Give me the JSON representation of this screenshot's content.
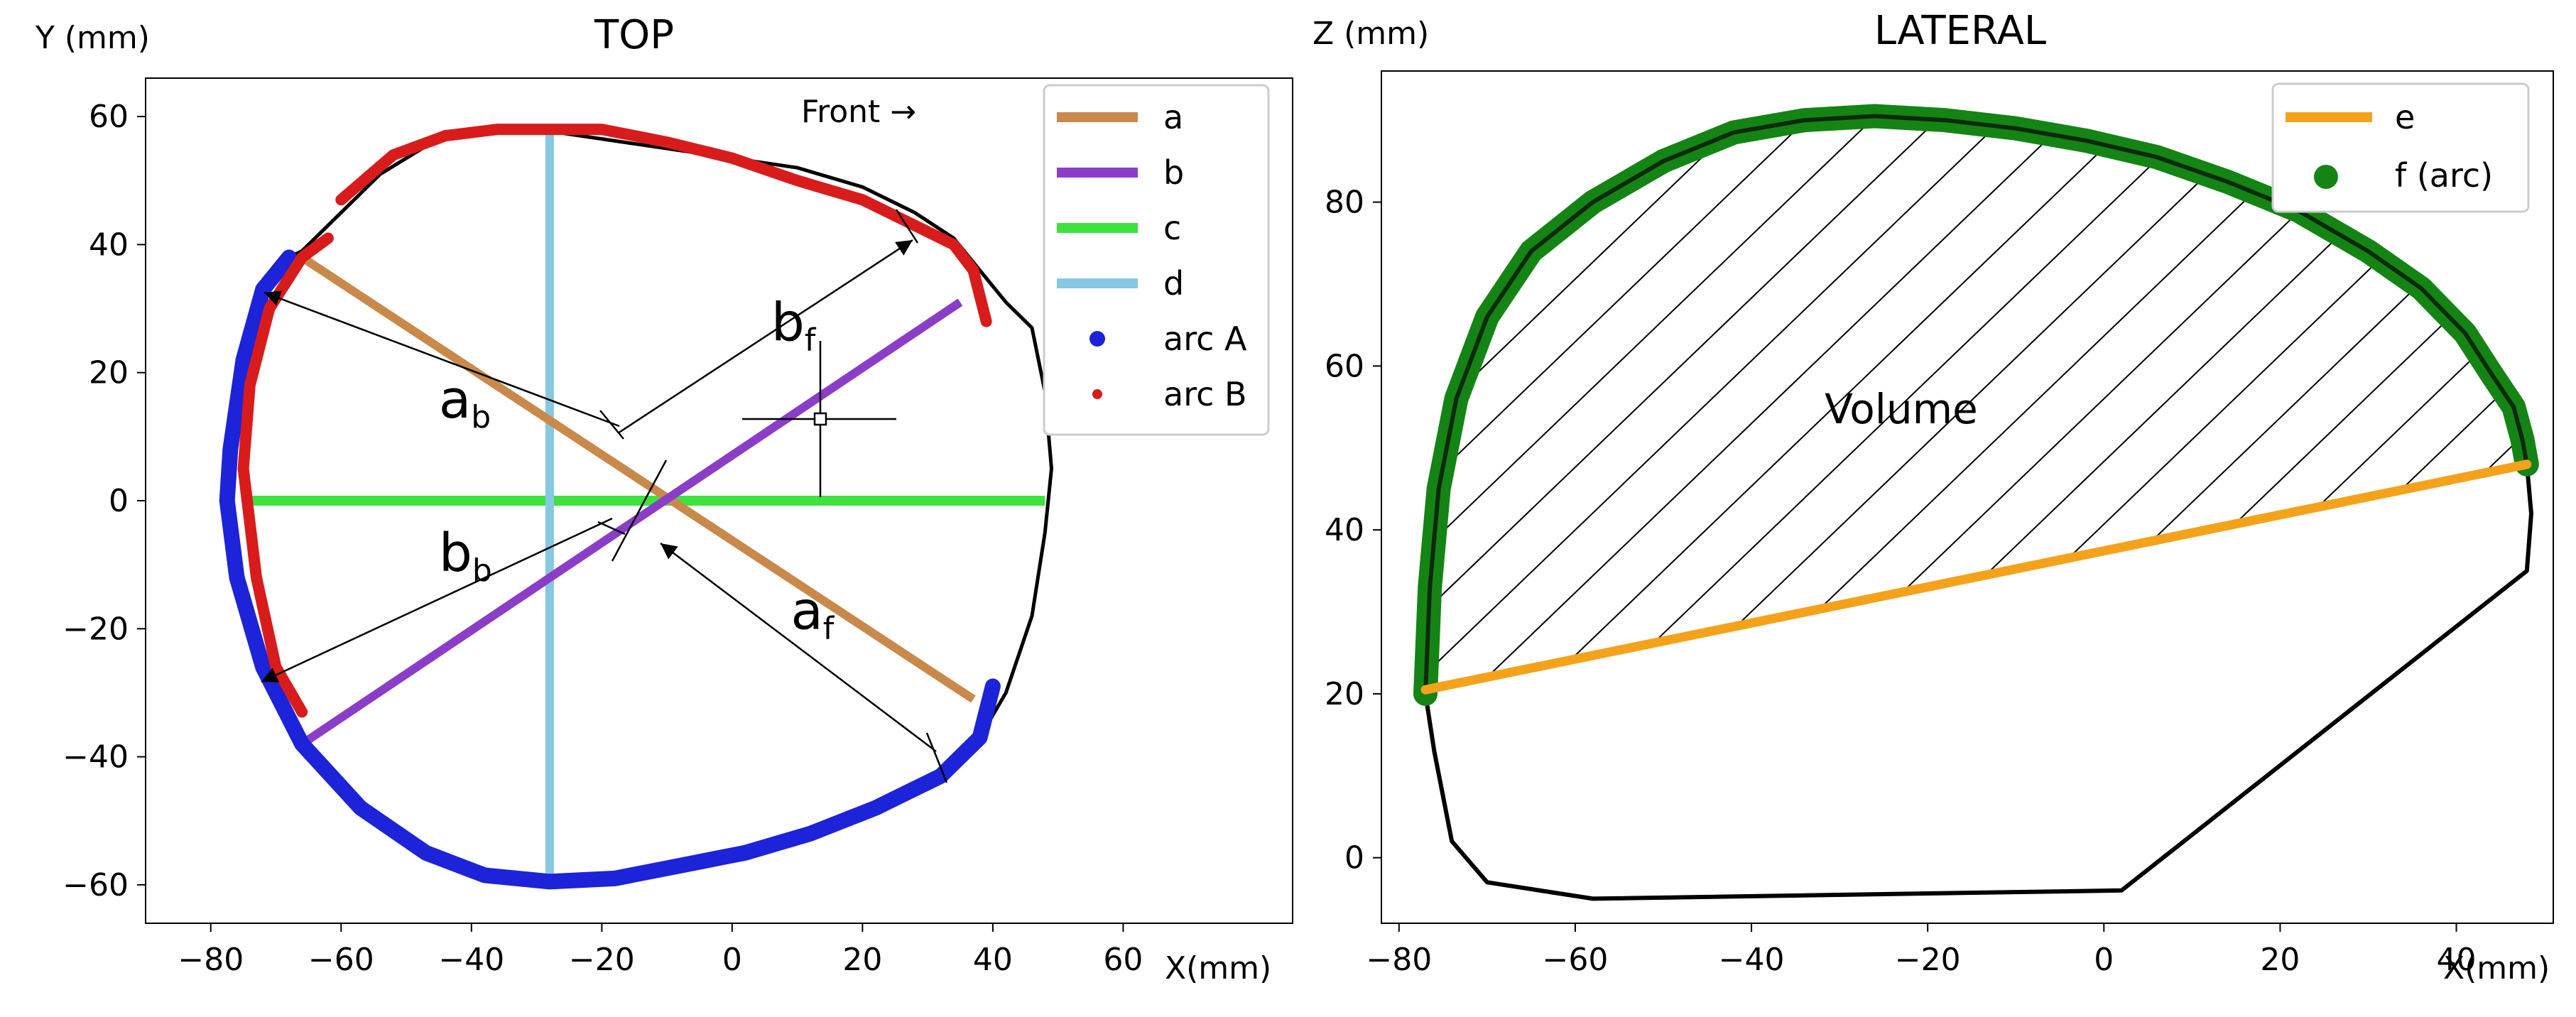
{
  "chart_data": [
    {
      "type": "line",
      "title": "TOP",
      "xlabel": "X(mm)",
      "ylabel": "Y (mm)",
      "xlim": [
        -90,
        86
      ],
      "ylim": [
        -66,
        66
      ],
      "xticks": [
        -80,
        -60,
        -40,
        -20,
        0,
        20,
        40,
        60
      ],
      "yticks": [
        -60,
        -40,
        -20,
        0,
        20,
        40,
        60
      ],
      "xtick_labels": [
        "−80",
        "−60",
        "−40",
        "−20",
        "0",
        "20",
        "40",
        "60"
      ],
      "ytick_labels": [
        "−60",
        "−40",
        "−20",
        "0",
        "20",
        "40",
        "60"
      ],
      "grid": false,
      "legend_position": "top-right",
      "legend": [
        {
          "label": "a",
          "color": "#c8894b",
          "marker": "line"
        },
        {
          "label": "b",
          "color": "#8c3dc8",
          "marker": "line"
        },
        {
          "label": "c",
          "color": "#3ee23e",
          "marker": "line"
        },
        {
          "label": "d",
          "color": "#86c8e0",
          "marker": "line"
        },
        {
          "label": "arc A",
          "color": "#1c23d8",
          "marker": "dot"
        },
        {
          "label": "arc B",
          "color": "#d81c1c",
          "marker": "dot-small"
        }
      ],
      "annotations": {
        "front_label": "Front →",
        "segment_labels": [
          {
            "text": "a",
            "sub": "b",
            "x": -45,
            "y": 13
          },
          {
            "text": "b",
            "sub": "f",
            "x": 6,
            "y": 25
          },
          {
            "text": "b",
            "sub": "b",
            "x": -45,
            "y": -11
          },
          {
            "text": "a",
            "sub": "f",
            "x": 9,
            "y": -20
          }
        ]
      },
      "series": [
        {
          "name": "outline",
          "color": "#000000",
          "x": [
            -68,
            -72,
            -75,
            -77,
            -77.5,
            -76,
            -72,
            -66,
            -57,
            -47,
            -38,
            -28,
            -18,
            -8,
            2,
            12,
            22,
            32,
            38,
            42,
            46,
            48,
            49,
            48,
            46,
            42,
            38,
            34,
            28,
            20,
            10,
            0,
            -10,
            -20,
            -30,
            -38,
            -46,
            -54,
            -60,
            -66,
            -68
          ],
          "y": [
            38,
            33,
            22,
            8,
            0,
            -12,
            -26,
            -38,
            -48,
            -55,
            -58.5,
            -59.5,
            -59,
            -57,
            -55,
            -52,
            -48,
            -43,
            -37,
            -30,
            -18,
            -5,
            5,
            17,
            27,
            31,
            36,
            41,
            45,
            49,
            52,
            53.5,
            55,
            56.5,
            58,
            58,
            56,
            51,
            45,
            39,
            38
          ]
        },
        {
          "name": "a",
          "color": "#c8894b",
          "x": [
            -66,
            37
          ],
          "y": [
            38,
            -31
          ]
        },
        {
          "name": "b",
          "color": "#8c3dc8",
          "x": [
            -66,
            35
          ],
          "y": [
            -38,
            31
          ]
        },
        {
          "name": "c",
          "color": "#3ee23e",
          "x": [
            -75,
            48
          ],
          "y": [
            0,
            0
          ]
        },
        {
          "name": "d",
          "color": "#86c8e0",
          "x": [
            -28,
            -28
          ],
          "y": [
            -59,
            58
          ]
        },
        {
          "name": "arc A",
          "color": "#1c23d8",
          "x": [
            -68,
            -72,
            -75,
            -77,
            -77.5,
            -76,
            -72,
            -66,
            -57,
            -47,
            -38,
            -28,
            -18,
            -8,
            2,
            12,
            22,
            32,
            38,
            40
          ],
          "y": [
            38,
            33,
            22,
            8,
            0,
            -12,
            -26,
            -38,
            -48,
            -55,
            -58.5,
            -59.5,
            -59,
            -57,
            -55,
            -52,
            -48,
            -43,
            -37,
            -29
          ]
        },
        {
          "name": "arc B",
          "color": "#d81c1c",
          "x": [
            -62,
            -66,
            -71,
            -74,
            -75,
            -73,
            -70,
            -66,
            -60,
            -52,
            -44,
            -36,
            -28,
            -20,
            -10,
            0,
            10,
            20,
            28,
            34,
            37,
            39
          ],
          "y": [
            41,
            38,
            30,
            18,
            5,
            -12,
            -26,
            -33,
            47,
            54,
            57,
            58,
            58,
            58,
            56,
            53.5,
            50,
            47,
            43,
            40,
            36,
            28
          ]
        }
      ]
    },
    {
      "type": "line",
      "title": "LATERAL",
      "xlabel": "X(mm)",
      "ylabel": "Z (mm)",
      "xlim": [
        -82,
        51
      ],
      "ylim": [
        -8,
        96
      ],
      "xticks": [
        -80,
        -60,
        -40,
        -20,
        0,
        20,
        40
      ],
      "yticks": [
        0,
        20,
        40,
        60,
        80
      ],
      "xtick_labels": [
        "−80",
        "−60",
        "−40",
        "−20",
        "0",
        "20",
        "40"
      ],
      "ytick_labels": [
        "0",
        "20",
        "40",
        "60",
        "80"
      ],
      "grid": false,
      "legend_position": "top-right",
      "legend": [
        {
          "label": "e",
          "color": "#f5a21b",
          "marker": "line"
        },
        {
          "label": "f (arc)",
          "color": "#148414",
          "marker": "dot"
        }
      ],
      "annotations": {
        "volume_label": "Volume"
      },
      "series": [
        {
          "name": "outline",
          "color": "#000000",
          "x": [
            -77,
            -76,
            -74,
            -70,
            -58,
            2,
            48,
            48.5,
            48
          ],
          "y": [
            20,
            13,
            2,
            -3,
            -5,
            -4,
            35,
            42,
            48
          ]
        },
        {
          "name": "e",
          "color": "#f5a21b",
          "x": [
            -77,
            48
          ],
          "y": [
            20.5,
            48
          ]
        },
        {
          "name": "f (arc)",
          "color": "#148414",
          "x": [
            -77,
            -76.5,
            -75.5,
            -73.5,
            -70,
            -65,
            -58,
            -50,
            -42,
            -34,
            -26,
            -18,
            -10,
            -2,
            6,
            14,
            22,
            30,
            36,
            41,
            44,
            46.5,
            47.5,
            48
          ],
          "y": [
            20,
            33,
            45,
            56,
            66,
            74,
            80,
            85,
            88.5,
            90,
            90.5,
            90,
            89,
            87.5,
            85.5,
            82.5,
            79,
            74,
            69.5,
            64,
            59,
            55,
            51,
            48
          ]
        }
      ]
    }
  ]
}
